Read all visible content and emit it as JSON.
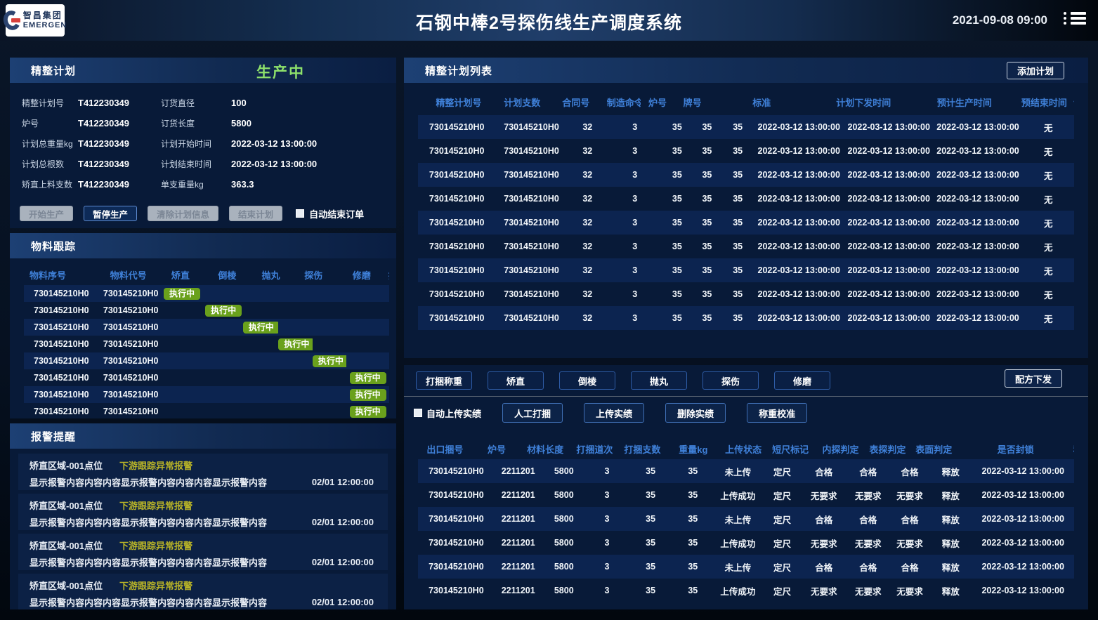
{
  "header": {
    "logo": {
      "company": "智昌集团",
      "brand": "EMERGEN"
    },
    "title": "石钢中棒2号探伤线生产调度系统",
    "datetime": "2021-09-08  09:00"
  },
  "plan_panel": {
    "title": "精整计划",
    "status": "生产中",
    "fields": [
      {
        "l1": "精整计划号",
        "v1": "T412230349",
        "l2": "订货直径",
        "v2": "100"
      },
      {
        "l1": "炉号",
        "v1": "T412230349",
        "l2": "订货长度",
        "v2": "5800"
      },
      {
        "l1": "计划总重量kg",
        "v1": "T412230349",
        "l2": "计划开始时间",
        "v2": "2022-03-12 13:00:00"
      },
      {
        "l1": "计划总根数",
        "v1": "T412230349",
        "l2": "计划结束时间",
        "v2": "2022-03-12 13:00:00"
      },
      {
        "l1": "矫直上料支数",
        "v1": "T412230349",
        "l2": "单支重量kg",
        "v2": "363.3"
      }
    ],
    "buttons": {
      "start": "开始生产",
      "pause": "暂停生产",
      "clear": "清除计划信息",
      "finish": "结束计划",
      "auto_checkbox": "自动结束订单"
    }
  },
  "tracking_panel": {
    "title": "物料跟踪",
    "headers": [
      "物料序号",
      "物料代号",
      "矫直",
      "倒棱",
      "抛丸",
      "探伤",
      "修磨",
      "打捆"
    ],
    "rows": [
      {
        "seq": "730145210H0",
        "code": "730145210H0",
        "stages": [
          "执行中",
          "",
          "",
          "",
          "",
          ""
        ]
      },
      {
        "seq": "730145210H0",
        "code": "730145210H0",
        "stages": [
          "",
          "执行中",
          "",
          "",
          "",
          ""
        ]
      },
      {
        "seq": "730145210H0",
        "code": "730145210H0",
        "stages": [
          "",
          "",
          "执行中",
          "",
          "",
          ""
        ]
      },
      {
        "seq": "730145210H0",
        "code": "730145210H0",
        "stages": [
          "",
          "",
          "",
          "执行中",
          "",
          ""
        ]
      },
      {
        "seq": "730145210H0",
        "code": "730145210H0",
        "stages": [
          "",
          "",
          "",
          "",
          "执行中",
          ""
        ]
      },
      {
        "seq": "730145210H0",
        "code": "730145210H0",
        "stages": [
          "",
          "",
          "",
          "",
          "",
          "执行中"
        ]
      },
      {
        "seq": "730145210H0",
        "code": "730145210H0",
        "stages": [
          "",
          "",
          "",
          "",
          "",
          "执行中"
        ]
      },
      {
        "seq": "730145210H0",
        "code": "730145210H0",
        "stages": [
          "",
          "",
          "",
          "",
          "",
          "执行中"
        ]
      }
    ]
  },
  "alarm_panel": {
    "title": "报警提醒",
    "items": [
      {
        "location": "矫直区域-001点位",
        "type": "下游跟踪异常报警",
        "content": "显示报警内容内容内容显示报警内容内容内容显示报警内容",
        "time": "02/01  12:00:00"
      },
      {
        "location": "矫直区域-001点位",
        "type": "下游跟踪异常报警",
        "content": "显示报警内容内容内容显示报警内容内容内容显示报警内容",
        "time": "02/01  12:00:00"
      },
      {
        "location": "矫直区域-001点位",
        "type": "下游跟踪异常报警",
        "content": "显示报警内容内容内容显示报警内容内容内容显示报警内容",
        "time": "02/01  12:00:00"
      },
      {
        "location": "矫直区域-001点位",
        "type": "下游跟踪异常报警",
        "content": "显示报警内容内容内容显示报警内容内容内容显示报警内容",
        "time": "02/01  12:00:00"
      }
    ]
  },
  "plan_list_panel": {
    "title": "精整计划列表",
    "add_button": "添加计划",
    "headers": [
      "精整计划号",
      "计划支数",
      "合同号",
      "制造命令号",
      "炉号",
      "牌号",
      "标准",
      "计划下发时间",
      "预计生产时间",
      "预结束时间",
      "计划备注"
    ],
    "rows": [
      [
        "730145210H0",
        "730145210H0",
        "32",
        "3",
        "35",
        "35",
        "35",
        "2022-03-12 13:00:00",
        "2022-03-12 13:00:00",
        "2022-03-12 13:00:00",
        "无"
      ],
      [
        "730145210H0",
        "730145210H0",
        "32",
        "3",
        "35",
        "35",
        "35",
        "2022-03-12 13:00:00",
        "2022-03-12 13:00:00",
        "2022-03-12 13:00:00",
        "无"
      ],
      [
        "730145210H0",
        "730145210H0",
        "32",
        "3",
        "35",
        "35",
        "35",
        "2022-03-12 13:00:00",
        "2022-03-12 13:00:00",
        "2022-03-12 13:00:00",
        "无"
      ],
      [
        "730145210H0",
        "730145210H0",
        "32",
        "3",
        "35",
        "35",
        "35",
        "2022-03-12 13:00:00",
        "2022-03-12 13:00:00",
        "2022-03-12 13:00:00",
        "无"
      ],
      [
        "730145210H0",
        "730145210H0",
        "32",
        "3",
        "35",
        "35",
        "35",
        "2022-03-12 13:00:00",
        "2022-03-12 13:00:00",
        "2022-03-12 13:00:00",
        "无"
      ],
      [
        "730145210H0",
        "730145210H0",
        "32",
        "3",
        "35",
        "35",
        "35",
        "2022-03-12 13:00:00",
        "2022-03-12 13:00:00",
        "2022-03-12 13:00:00",
        "无"
      ],
      [
        "730145210H0",
        "730145210H0",
        "32",
        "3",
        "35",
        "35",
        "35",
        "2022-03-12 13:00:00",
        "2022-03-12 13:00:00",
        "2022-03-12 13:00:00",
        "无"
      ],
      [
        "730145210H0",
        "730145210H0",
        "32",
        "3",
        "35",
        "35",
        "35",
        "2022-03-12 13:00:00",
        "2022-03-12 13:00:00",
        "2022-03-12 13:00:00",
        "无"
      ],
      [
        "730145210H0",
        "730145210H0",
        "32",
        "3",
        "35",
        "35",
        "35",
        "2022-03-12 13:00:00",
        "2022-03-12 13:00:00",
        "2022-03-12 13:00:00",
        "无"
      ]
    ]
  },
  "process_panel": {
    "tabs": [
      "打捆称重",
      "矫直",
      "倒棱",
      "抛丸",
      "探伤",
      "修磨"
    ],
    "active_tab": "打捆称重",
    "recipe_button": "配方下发",
    "auto_upload_checkbox": "自动上传实绩",
    "action_buttons": [
      "人工打捆",
      "上传实绩",
      "删除实绩",
      "称重校准"
    ],
    "table": {
      "headers": [
        "出口捆号",
        "炉号",
        "材料长度",
        "打捆道次",
        "打捆支数",
        "重量kg",
        "上传状态",
        "短尺标记",
        "内探判定",
        "表探判定",
        "表面判定",
        "是否封锁",
        "称重时间"
      ],
      "rows": [
        [
          "730145210H0",
          "2211201",
          "5800",
          "3",
          "35",
          "35",
          "未上传",
          "定尺",
          "合格",
          "合格",
          "合格",
          "释放",
          "2022-03-12 13:00:00"
        ],
        [
          "730145210H0",
          "2211201",
          "5800",
          "3",
          "35",
          "35",
          "上传成功",
          "定尺",
          "无要求",
          "无要求",
          "无要求",
          "释放",
          "2022-03-12 13:00:00"
        ],
        [
          "730145210H0",
          "2211201",
          "5800",
          "3",
          "35",
          "35",
          "未上传",
          "定尺",
          "合格",
          "合格",
          "合格",
          "释放",
          "2022-03-12 13:00:00"
        ],
        [
          "730145210H0",
          "2211201",
          "5800",
          "3",
          "35",
          "35",
          "上传成功",
          "定尺",
          "无要求",
          "无要求",
          "无要求",
          "释放",
          "2022-03-12 13:00:00"
        ],
        [
          "730145210H0",
          "2211201",
          "5800",
          "3",
          "35",
          "35",
          "未上传",
          "定尺",
          "合格",
          "合格",
          "合格",
          "释放",
          "2022-03-12 13:00:00"
        ],
        [
          "730145210H0",
          "2211201",
          "5800",
          "3",
          "35",
          "35",
          "上传成功",
          "定尺",
          "无要求",
          "无要求",
          "无要求",
          "释放",
          "2022-03-12 13:00:00"
        ]
      ]
    }
  }
}
